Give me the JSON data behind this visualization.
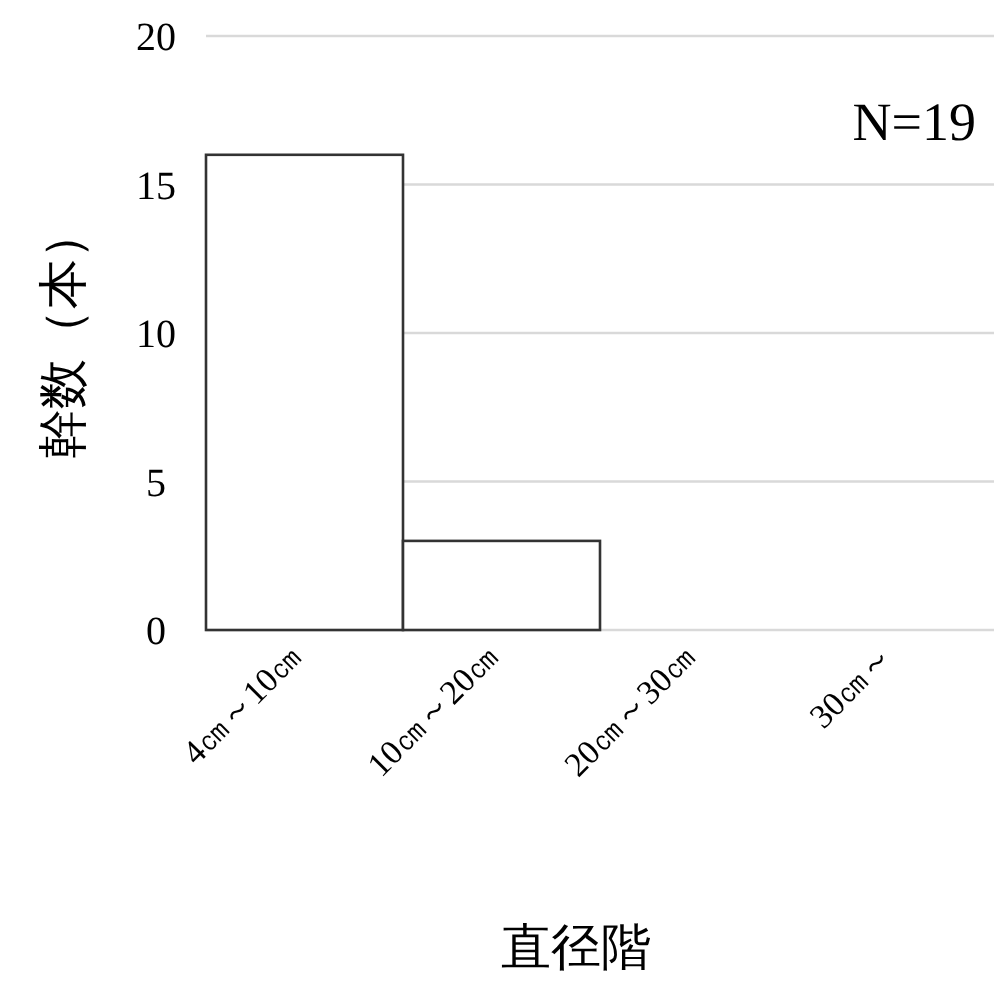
{
  "chart_data": {
    "type": "bar",
    "xlabel": "直径階",
    "ylabel": "幹数（本）",
    "categories": [
      "4㎝～10㎝",
      "10㎝～20㎝",
      "20㎝～30㎝",
      "30㎝～"
    ],
    "values": [
      16,
      3,
      0,
      0
    ],
    "color": "#ffffff",
    "ylim": [
      0,
      20
    ],
    "yticks": [
      0,
      5,
      10,
      15,
      20
    ],
    "grid": "y",
    "annotations": [
      "N=19"
    ]
  }
}
